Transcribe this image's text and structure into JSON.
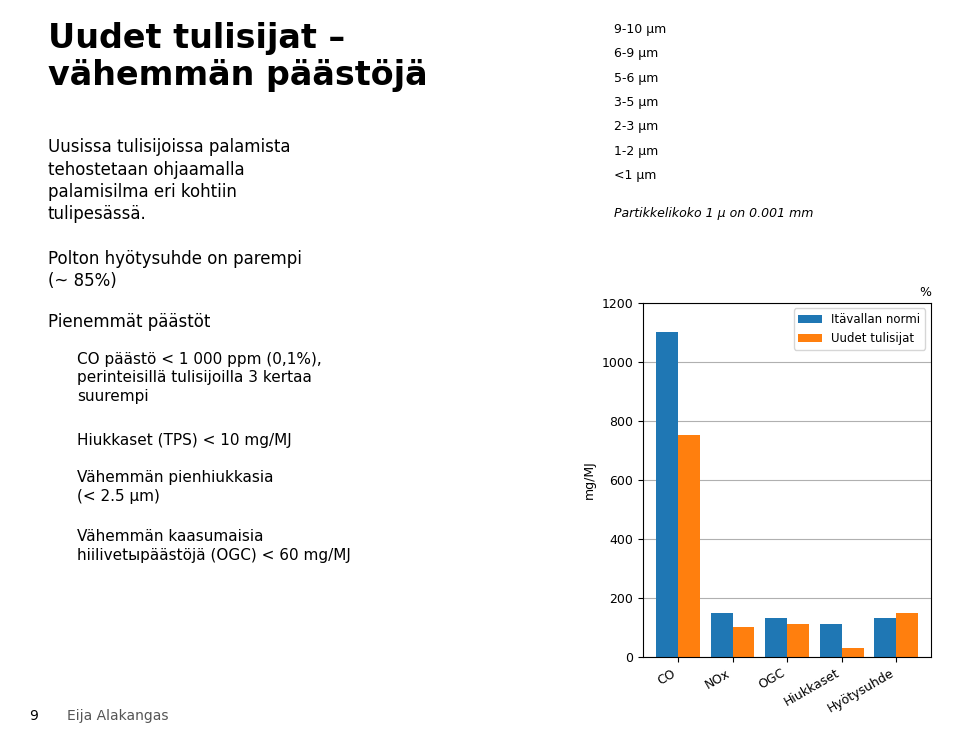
{
  "chart_data": {
    "type": "bar",
    "title": "Uudet tulisijat –\nvähemmän päästöjä",
    "bullets": [
      {
        "text": "Uusissa tulisijoissa palamista\ntehostetaan ohjaamalla\npalamisilma eri kohtiin\ntulipesässä."
      },
      {
        "text": "Polton hyötysuhde on parempi\n(~ 85%)"
      },
      {
        "text": "Pienemmät päästöt",
        "sub": [
          "CO päästö < 1 000 ppm (0,1%),\nperinteisillä tulisijoilla 3 kertaa\nsuurempi",
          "Hiukkaset (TPS) < 10 mg/MJ",
          "Vähemmän pienhiukkasia\n(< 2.5 μm)",
          "Vähemmän kaasumaisia\nhiilivetыpäästöjä (OGC) < 60 mg/MJ"
        ]
      }
    ],
    "particle_labels": [
      "9-10 μm",
      "6-9 μm",
      "5-6 μm",
      "3-5 μm",
      "2-3 μm",
      "1-2 μm",
      "<1 μm"
    ],
    "caption": "Partikkelikoko 1 μ on 0.001 mm",
    "footer": [
      "9",
      "Eija Alakangas"
    ],
    "categories": [
      "CO",
      "NOx",
      "OGC",
      "Hiukkaset",
      "Hyötysuhde"
    ],
    "series": [
      {
        "name": "Itävallan normi",
        "values": [
          1100,
          150,
          130,
          110,
          130
        ]
      },
      {
        "name": "Uudet tulisijat",
        "values": [
          750,
          100,
          110,
          30,
          150
        ]
      }
    ],
    "ylabel": "mg/MJ",
    "unit_label": "%",
    "ylim": [
      0,
      1200
    ],
    "yticks": [
      0,
      200,
      400,
      600,
      800,
      1000,
      1200
    ],
    "grid": true,
    "legend": "upper right"
  }
}
